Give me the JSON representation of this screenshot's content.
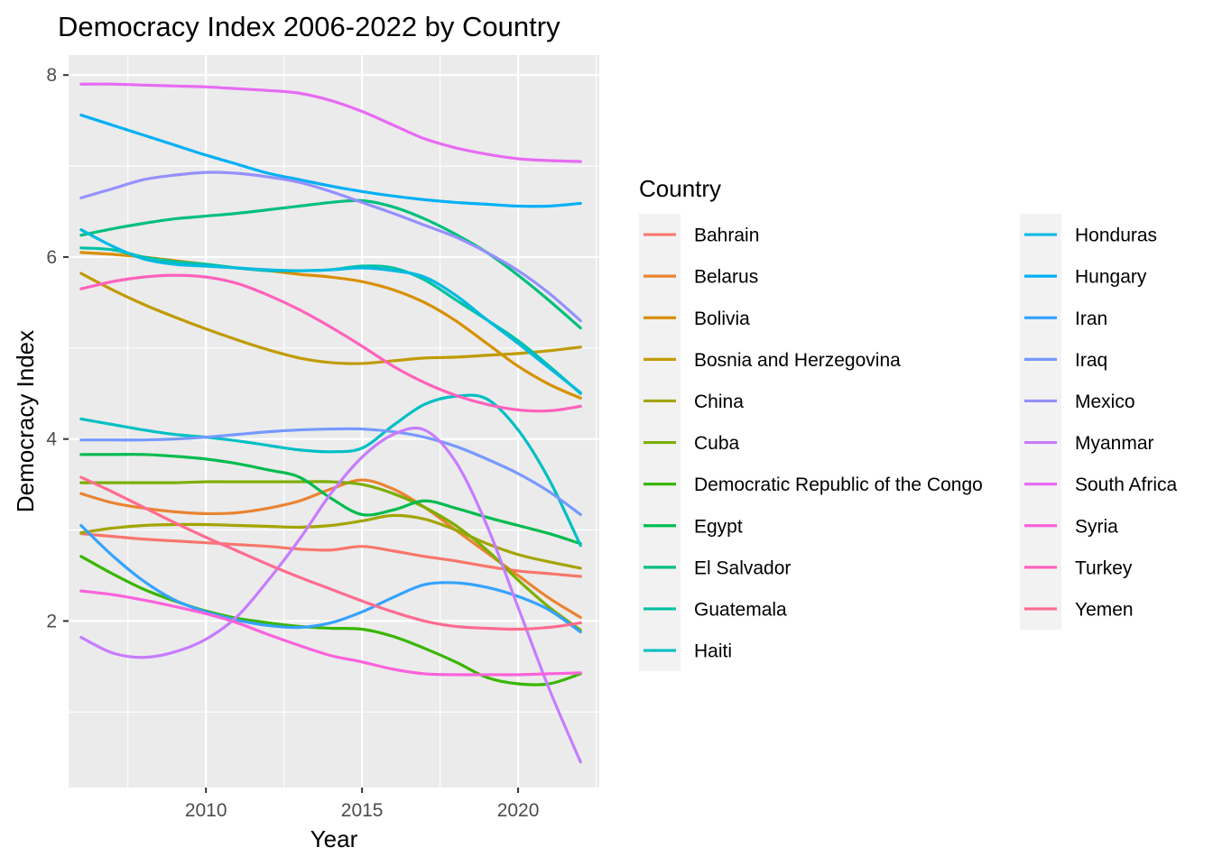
{
  "chart_data": {
    "type": "line",
    "title": "Democracy Index 2006-2022 by Country",
    "xlabel": "Year",
    "ylabel": "Democracy Index",
    "xlim": [
      2005.6,
      2022.6
    ],
    "ylim": [
      0.17,
      8.22
    ],
    "xticks": [
      2010,
      2015,
      2020
    ],
    "yticks": [
      2,
      4,
      6,
      8
    ],
    "grid": true,
    "legend": {
      "title": "Country",
      "placement": "right",
      "columns": 2
    },
    "x": [
      2006,
      2007,
      2008,
      2009,
      2010,
      2011,
      2012,
      2013,
      2014,
      2015,
      2016,
      2017,
      2018,
      2019,
      2020,
      2021,
      2022
    ],
    "series": [
      {
        "name": "Bahrain",
        "color": "#F8766D",
        "values": [
          2.96,
          2.93,
          2.9,
          2.88,
          2.86,
          2.84,
          2.82,
          2.79,
          2.78,
          2.82,
          2.77,
          2.71,
          2.66,
          2.6,
          2.55,
          2.52,
          2.49
        ]
      },
      {
        "name": "Belarus",
        "color": "#EA8331",
        "values": [
          3.4,
          3.3,
          3.24,
          3.2,
          3.18,
          3.19,
          3.24,
          3.32,
          3.45,
          3.55,
          3.45,
          3.25,
          3.0,
          2.75,
          2.5,
          2.25,
          2.04
        ]
      },
      {
        "name": "Bolivia",
        "color": "#D89000",
        "values": [
          6.05,
          6.03,
          6.0,
          5.96,
          5.92,
          5.88,
          5.85,
          5.81,
          5.78,
          5.73,
          5.64,
          5.5,
          5.3,
          5.05,
          4.8,
          4.6,
          4.45
        ]
      },
      {
        "name": "Bosnia and Herzegovina",
        "color": "#C09B00",
        "values": [
          5.82,
          5.64,
          5.48,
          5.34,
          5.21,
          5.09,
          4.98,
          4.89,
          4.84,
          4.83,
          4.86,
          4.89,
          4.9,
          4.92,
          4.94,
          4.97,
          5.01
        ]
      },
      {
        "name": "China",
        "color": "#A3A500",
        "values": [
          2.97,
          3.02,
          3.05,
          3.06,
          3.06,
          3.05,
          3.04,
          3.03,
          3.05,
          3.1,
          3.16,
          3.12,
          3.0,
          2.85,
          2.73,
          2.65,
          2.58
        ]
      },
      {
        "name": "Cuba",
        "color": "#7CAE00",
        "values": [
          3.52,
          3.52,
          3.52,
          3.52,
          3.53,
          3.53,
          3.53,
          3.53,
          3.53,
          3.5,
          3.4,
          3.25,
          3.05,
          2.78,
          2.45,
          2.15,
          1.9
        ]
      },
      {
        "name": "Democratic Republic of the Congo",
        "color": "#39B600",
        "values": [
          2.71,
          2.52,
          2.35,
          2.22,
          2.11,
          2.03,
          1.98,
          1.94,
          1.92,
          1.91,
          1.83,
          1.7,
          1.55,
          1.38,
          1.31,
          1.31,
          1.42
        ]
      },
      {
        "name": "Egypt",
        "color": "#00BB4E",
        "values": [
          3.83,
          3.83,
          3.83,
          3.81,
          3.78,
          3.73,
          3.66,
          3.58,
          3.35,
          3.17,
          3.22,
          3.32,
          3.24,
          3.14,
          3.05,
          2.96,
          2.85
        ]
      },
      {
        "name": "El Salvador",
        "color": "#00BF7D",
        "values": [
          6.24,
          6.31,
          6.37,
          6.42,
          6.45,
          6.48,
          6.52,
          6.56,
          6.6,
          6.62,
          6.55,
          6.42,
          6.25,
          6.05,
          5.8,
          5.52,
          5.22
        ]
      },
      {
        "name": "Guatemala",
        "color": "#00C1A3",
        "values": [
          6.1,
          6.08,
          6.0,
          5.95,
          5.92,
          5.88,
          5.85,
          5.85,
          5.86,
          5.9,
          5.88,
          5.75,
          5.53,
          5.31,
          5.08,
          4.8,
          4.5
        ]
      },
      {
        "name": "Haiti",
        "color": "#00BFC4",
        "values": [
          4.22,
          4.16,
          4.1,
          4.05,
          4.02,
          3.98,
          3.93,
          3.88,
          3.86,
          3.9,
          4.15,
          4.38,
          4.47,
          4.44,
          4.1,
          3.55,
          2.83
        ]
      },
      {
        "name": "Honduras",
        "color": "#00BAE0",
        "values": [
          6.3,
          6.12,
          5.98,
          5.92,
          5.9,
          5.88,
          5.86,
          5.85,
          5.86,
          5.88,
          5.85,
          5.78,
          5.58,
          5.31,
          5.05,
          4.78,
          4.51
        ]
      },
      {
        "name": "Hungary",
        "color": "#00B0F6",
        "values": [
          7.56,
          7.45,
          7.34,
          7.23,
          7.12,
          7.02,
          6.92,
          6.85,
          6.78,
          6.72,
          6.67,
          6.63,
          6.6,
          6.58,
          6.56,
          6.56,
          6.59
        ]
      },
      {
        "name": "Iran",
        "color": "#35A2FF",
        "values": [
          3.05,
          2.72,
          2.44,
          2.23,
          2.1,
          2.01,
          1.95,
          1.93,
          1.98,
          2.1,
          2.26,
          2.4,
          2.42,
          2.37,
          2.27,
          2.12,
          1.88
        ]
      },
      {
        "name": "Iraq",
        "color": "#7699FF",
        "values": [
          3.99,
          3.99,
          3.99,
          4.0,
          4.02,
          4.05,
          4.08,
          4.1,
          4.11,
          4.11,
          4.08,
          4.02,
          3.92,
          3.78,
          3.62,
          3.42,
          3.17
        ]
      },
      {
        "name": "Mexico",
        "color": "#9590FF",
        "values": [
          6.65,
          6.75,
          6.85,
          6.9,
          6.93,
          6.92,
          6.88,
          6.82,
          6.72,
          6.6,
          6.48,
          6.35,
          6.22,
          6.05,
          5.85,
          5.6,
          5.3
        ]
      },
      {
        "name": "Myanmar",
        "color": "#C77CFF",
        "values": [
          1.82,
          1.65,
          1.6,
          1.66,
          1.8,
          2.05,
          2.45,
          2.9,
          3.4,
          3.8,
          4.05,
          4.1,
          3.75,
          3.05,
          2.15,
          1.25,
          0.45
        ]
      },
      {
        "name": "South Africa",
        "color": "#E76BF3",
        "values": [
          7.9,
          7.9,
          7.89,
          7.88,
          7.87,
          7.85,
          7.83,
          7.8,
          7.72,
          7.6,
          7.45,
          7.3,
          7.2,
          7.13,
          7.08,
          7.06,
          7.05
        ]
      },
      {
        "name": "Syria",
        "color": "#FA62DB",
        "values": [
          2.33,
          2.29,
          2.23,
          2.16,
          2.08,
          1.98,
          1.85,
          1.73,
          1.62,
          1.55,
          1.47,
          1.42,
          1.41,
          1.41,
          1.41,
          1.42,
          1.43
        ]
      },
      {
        "name": "Turkey",
        "color": "#FF62BC",
        "values": [
          5.65,
          5.73,
          5.78,
          5.8,
          5.78,
          5.71,
          5.58,
          5.42,
          5.23,
          5.02,
          4.8,
          4.62,
          4.48,
          4.38,
          4.32,
          4.31,
          4.36
        ]
      },
      {
        "name": "Yemen",
        "color": "#FF6C91",
        "values": [
          3.58,
          3.42,
          3.25,
          3.08,
          2.92,
          2.77,
          2.62,
          2.48,
          2.35,
          2.22,
          2.1,
          2.0,
          1.94,
          1.92,
          1.91,
          1.93,
          1.98
        ]
      }
    ]
  }
}
